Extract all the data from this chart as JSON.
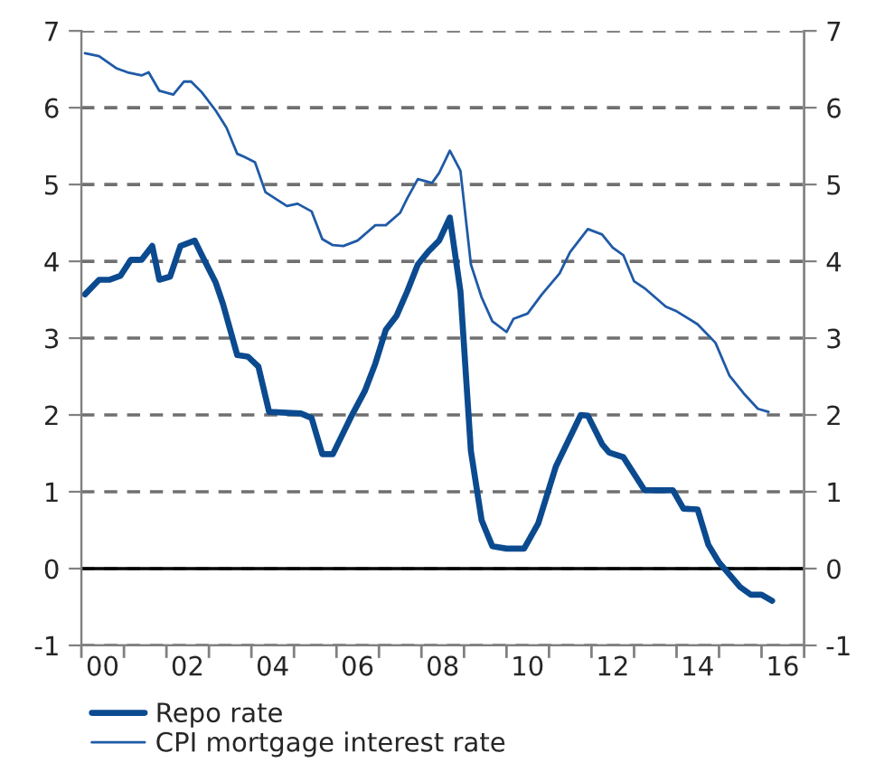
{
  "chart_data": {
    "type": "line",
    "xlim": [
      "2000-01-01",
      "2017-01-01"
    ],
    "xticks": [
      {
        "value": "2000",
        "label": null
      },
      {
        "value": "2001",
        "label": null
      },
      {
        "value": "2002",
        "label": null
      },
      {
        "value": "2003",
        "label": null
      },
      {
        "value": "2004",
        "label": null
      },
      {
        "value": "2005",
        "label": null
      },
      {
        "value": "2006",
        "label": null
      },
      {
        "value": "2007",
        "label": null
      },
      {
        "value": "2008",
        "label": null
      },
      {
        "value": "2009",
        "label": null
      },
      {
        "value": "2010",
        "label": null
      },
      {
        "value": "2011",
        "label": null
      },
      {
        "value": "2012",
        "label": null
      },
      {
        "value": "2013",
        "label": null
      },
      {
        "value": "2014",
        "label": null
      },
      {
        "value": "2015",
        "label": null
      },
      {
        "value": "2016",
        "label": null
      },
      {
        "value": "2017",
        "label": null
      },
      {
        "value": "2000-07-01",
        "label": "00"
      },
      {
        "value": "2002-07-01",
        "label": "02"
      },
      {
        "value": "2004-07-01",
        "label": "04"
      },
      {
        "value": "2006-07-01",
        "label": "06"
      },
      {
        "value": "2008-07-01",
        "label": "08"
      },
      {
        "value": "2010-07-01",
        "label": "10"
      },
      {
        "value": "2012-07-01",
        "label": "12"
      },
      {
        "value": "2014-07-01",
        "label": "14"
      },
      {
        "value": "2016-07-01",
        "label": "16"
      }
    ],
    "ylim": [
      -1,
      7
    ],
    "yticks": [
      -1,
      0,
      1,
      2,
      3,
      4,
      5,
      6,
      7
    ],
    "y2lim": [
      -1,
      7
    ],
    "y2ticks": [
      -1,
      0,
      1,
      2,
      3,
      4,
      5,
      6,
      7
    ],
    "grid": "y",
    "legend": "bottom left",
    "marker": "none",
    "line_style": "solid",
    "ref_lines": [
      {
        "axis": "y",
        "value": 0,
        "label": null,
        "color": "#000000",
        "line_style": "solid"
      }
    ],
    "series": [
      {
        "name": "Repo rate",
        "color": "#0b4a8f",
        "x": [
          "2000-02",
          "2000-06",
          "2000-09",
          "2000-12",
          "2001-03",
          "2001-06",
          "2001-09",
          "2001-11",
          "2002-02",
          "2002-05",
          "2002-09",
          "2002-11",
          "2003-03",
          "2003-05",
          "2003-09",
          "2003-12",
          "2004-03",
          "2004-06",
          "2005-03",
          "2005-06",
          "2005-09",
          "2005-12",
          "2006-05",
          "2006-09",
          "2006-12",
          "2007-03",
          "2007-06",
          "2007-09",
          "2007-12",
          "2008-03",
          "2008-06",
          "2008-09",
          "2008-12",
          "2009-03",
          "2009-06",
          "2009-09",
          "2010-01",
          "2010-06",
          "2010-10",
          "2011-03",
          "2011-10",
          "2011-12",
          "2012-04",
          "2012-06",
          "2012-10",
          "2013-04",
          "2013-12",
          "2014-03",
          "2014-07",
          "2014-10",
          "2015-01",
          "2015-07",
          "2015-10",
          "2016-01",
          "2016-04"
        ],
        "values": [
          3.57,
          3.76,
          3.76,
          3.81,
          4.02,
          4.02,
          4.2,
          3.76,
          3.8,
          4.2,
          4.27,
          4.08,
          3.72,
          3.45,
          2.78,
          2.76,
          2.63,
          2.04,
          2.02,
          1.96,
          1.49,
          1.49,
          1.96,
          2.31,
          2.67,
          3.11,
          3.29,
          3.61,
          3.96,
          4.13,
          4.27,
          4.57,
          3.61,
          1.53,
          0.63,
          0.29,
          0.26,
          0.26,
          0.59,
          1.33,
          2.0,
          1.99,
          1.62,
          1.51,
          1.45,
          1.02,
          1.02,
          0.78,
          0.77,
          0.31,
          0.08,
          -0.24,
          -0.34,
          -0.34,
          -0.42
        ]
      },
      {
        "name": "CPI mortgage interest rate",
        "color": "#1f5aa6",
        "x": [
          "2000-02",
          "2000-06",
          "2000-11",
          "2001-02",
          "2001-06",
          "2001-08",
          "2001-11",
          "2002-03",
          "2002-06",
          "2002-08",
          "2002-11",
          "2003-03",
          "2003-06",
          "2003-09",
          "2003-11",
          "2004-02",
          "2004-05",
          "2004-09",
          "2004-11",
          "2005-02",
          "2005-06",
          "2005-09",
          "2005-12",
          "2006-03",
          "2006-07",
          "2006-12",
          "2007-03",
          "2007-07",
          "2007-09",
          "2007-12",
          "2008-04",
          "2008-06",
          "2008-09",
          "2008-12",
          "2009-03",
          "2009-06",
          "2009-09",
          "2010-01",
          "2010-03",
          "2010-07",
          "2010-11",
          "2011-04",
          "2011-07",
          "2011-12",
          "2012-04",
          "2012-07",
          "2012-10",
          "2013-01",
          "2013-04",
          "2013-10",
          "2014-01",
          "2014-07",
          "2014-12",
          "2015-04",
          "2015-08",
          "2015-12",
          "2016-03"
        ],
        "values": [
          6.71,
          6.67,
          6.51,
          6.46,
          6.42,
          6.46,
          6.22,
          6.17,
          6.34,
          6.34,
          6.2,
          5.96,
          5.74,
          5.4,
          5.36,
          5.29,
          4.9,
          4.78,
          4.72,
          4.75,
          4.65,
          4.29,
          4.21,
          4.2,
          4.27,
          4.47,
          4.47,
          4.63,
          4.82,
          5.07,
          5.02,
          5.15,
          5.44,
          5.18,
          3.96,
          3.53,
          3.22,
          3.08,
          3.25,
          3.32,
          3.57,
          3.84,
          4.12,
          4.42,
          4.35,
          4.18,
          4.08,
          3.74,
          3.65,
          3.41,
          3.35,
          3.18,
          2.94,
          2.51,
          2.28,
          2.08,
          2.04
        ]
      }
    ]
  }
}
